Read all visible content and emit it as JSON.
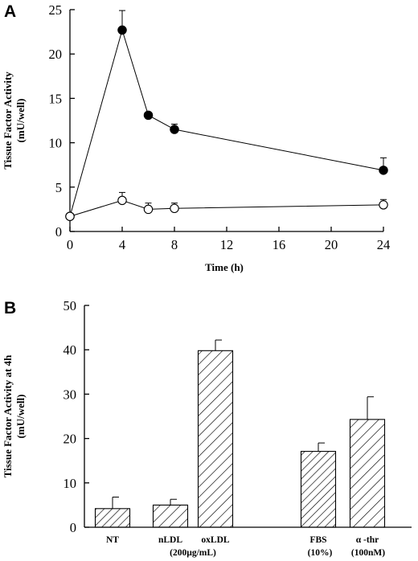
{
  "chart_data": [
    {
      "panel": "A",
      "type": "line",
      "xlabel": "Time (h)",
      "ylabel_lines": [
        "Tissue Factor Activity",
        "(mU/well)"
      ],
      "xlim": [
        0,
        24
      ],
      "ylim": [
        0,
        25
      ],
      "x_ticks": [
        0,
        4,
        8,
        12,
        16,
        20,
        24
      ],
      "y_ticks": [
        0,
        5,
        10,
        15,
        20,
        25
      ],
      "series": [
        {
          "marker": "filled-circle",
          "x": [
            0,
            4,
            6,
            8,
            24
          ],
          "y": [
            1.7,
            22.7,
            13.1,
            11.5,
            6.9
          ],
          "error": [
            0,
            2.2,
            0,
            0.6,
            1.4
          ]
        },
        {
          "marker": "open-circle",
          "x": [
            0,
            4,
            6,
            8,
            24
          ],
          "y": [
            1.7,
            3.5,
            2.5,
            2.6,
            3.0
          ],
          "error": [
            0,
            0.9,
            0.7,
            0.6,
            0.6
          ]
        }
      ]
    },
    {
      "panel": "B",
      "type": "bar",
      "ylabel_lines": [
        "Tissue Factor Activity at 4h",
        "(mU/well)"
      ],
      "ylim": [
        0,
        50
      ],
      "y_ticks": [
        0,
        10,
        20,
        30,
        40,
        50
      ],
      "bars": [
        {
          "label": "NT",
          "value": 4.2,
          "error": 2.6,
          "hatch": "dense"
        },
        {
          "label": "nLDL",
          "value": 5.0,
          "error": 1.3,
          "hatch": "wide"
        },
        {
          "label": "oxLDL",
          "value": 39.8,
          "error": 2.4,
          "hatch": "wide"
        },
        {
          "label": "FBS",
          "value": 17.1,
          "error": 1.9,
          "hatch": "dense"
        },
        {
          "label": "α -thr",
          "value": 24.3,
          "error": 5.1,
          "hatch": "wide"
        }
      ],
      "sublabels": [
        {
          "text": "(200µg/mL)",
          "under": "nLDL-oxLDL"
        },
        {
          "text": "(10%)",
          "under": "FBS"
        },
        {
          "text": "(100nM)",
          "under": "α -thr"
        }
      ]
    }
  ]
}
